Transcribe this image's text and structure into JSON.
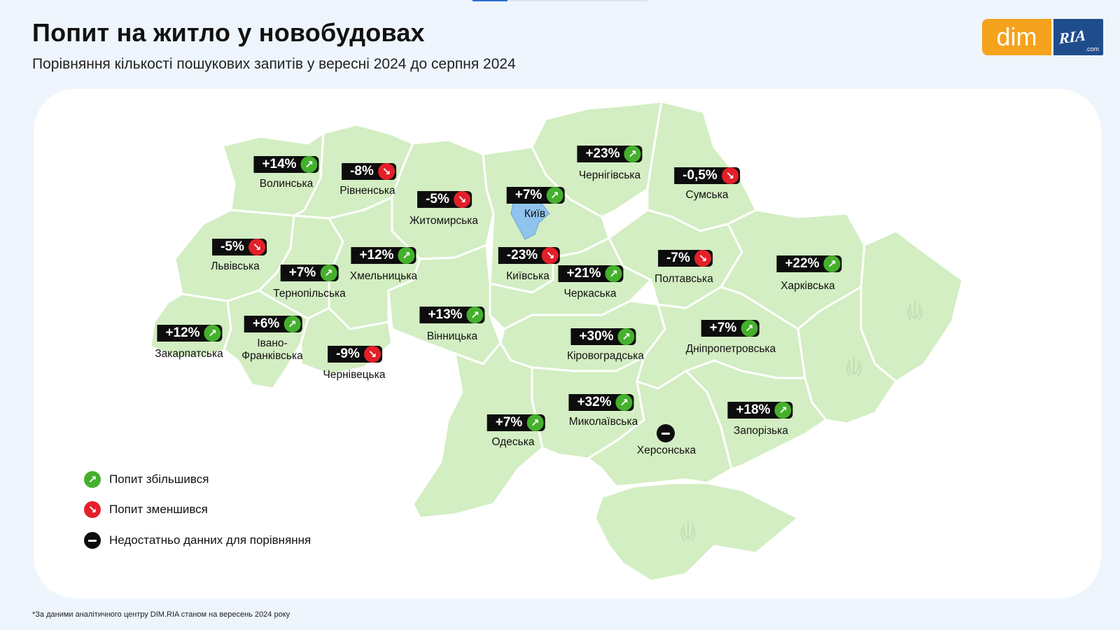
{
  "header": {
    "title": "Попит на житло у новобудовах",
    "subtitle": "Порівняння кількості пошукових запитів у вересні 2024 до серпня 2024"
  },
  "logo": {
    "dim": "dim",
    "ria": "RIA",
    "com": ".com"
  },
  "colors": {
    "up": "#44b02c",
    "down": "#e3202a",
    "land": "#d3eec2",
    "kyiv_city": "#8fc3ee",
    "background": "#eef5fc",
    "logo_orange": "#f5a21d",
    "logo_blue": "#1f4d8c"
  },
  "regions": {
    "volynska": {
      "name": "Волинська",
      "value": "+14%",
      "trend": "up"
    },
    "rivnenska": {
      "name": "Рівненська",
      "value": "-8%",
      "trend": "down"
    },
    "zhytomyrska": {
      "name": "Житомирська",
      "value": "-5%",
      "trend": "down"
    },
    "kyiv": {
      "name": "Київ",
      "value": "+7%",
      "trend": "up"
    },
    "chernihivska": {
      "name": "Чернігівська",
      "value": "+23%",
      "trend": "up"
    },
    "sumska": {
      "name": "Сумська",
      "value": "-0,5%",
      "trend": "down"
    },
    "lvivska": {
      "name": "Львівська",
      "value": "-5%",
      "trend": "down"
    },
    "ternopilska": {
      "name": "Тернопільська",
      "value": "+7%",
      "trend": "up"
    },
    "khmelnytska": {
      "name": "Хмельницька",
      "value": "+12%",
      "trend": "up"
    },
    "kyivska": {
      "name": "Київська",
      "value": "-23%",
      "trend": "down"
    },
    "cherkaska": {
      "name": "Черкаська",
      "value": "+21%",
      "trend": "up"
    },
    "poltavska": {
      "name": "Полтавська",
      "value": "-7%",
      "trend": "down"
    },
    "kharkivska": {
      "name": "Харківська",
      "value": "+22%",
      "trend": "up"
    },
    "zakarpatska": {
      "name": "Закарпатська",
      "value": "+12%",
      "trend": "up"
    },
    "ivanofrankivska": {
      "name": "Івано-\nФранківська",
      "value": "+6%",
      "trend": "up"
    },
    "chernivetska": {
      "name": "Чернівецька",
      "value": "-9%",
      "trend": "down"
    },
    "vinnytska": {
      "name": "Вінницька",
      "value": "+13%",
      "trend": "up"
    },
    "kirovohradska": {
      "name": "Кіровоградська",
      "value": "+30%",
      "trend": "up"
    },
    "dnipropetrovska": {
      "name": "Дніпропетровська",
      "value": "+7%",
      "trend": "up"
    },
    "mykolaivska": {
      "name": "Миколаївська",
      "value": "+32%",
      "trend": "up"
    },
    "odeska": {
      "name": "Одеська",
      "value": "+7%",
      "trend": "up"
    },
    "khersonska": {
      "name": "Херсонська",
      "value": "",
      "trend": "none"
    },
    "zaporizka": {
      "name": "Запорізька",
      "value": "+18%",
      "trend": "up"
    }
  },
  "legend": {
    "up": "Попит збільшився",
    "down": "Попит зменшився",
    "none": "Недостатньо данних для порівняння"
  },
  "footnote": "*За даними аналітичного центру DIM.RIA станом на вересень 2024 року"
}
